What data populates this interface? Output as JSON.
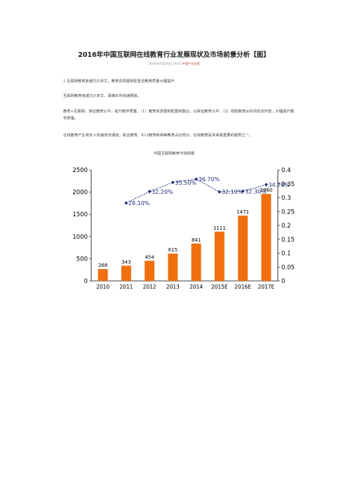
{
  "document": {
    "title": "2016年中国互联网在线教育行业发展现状及市场前景分析【图】",
    "meta": {
      "date": "2016年05月28日 16:02",
      "author": "中国产业信息"
    },
    "paragraphs": [
      "1.互联网教育浪潮方兴未艾，教育资源重新配置且教育质量大幅提升",
      "互联网教育浪潮方兴未艾，政策红利快速释放。",
      "教育+互联网：保证教育公平，提升教学质量。（1）教育资源重新配置和整合，以保证教育公平。（2）帮助教育从封闭走向开放，大幅提升教学质量。",
      "在线教育产业将步入快速增长通道。职业教育、K12教育和高等教育占比较大。在线教育是未来最重要的趋势之一。"
    ],
    "chart_caption": "中国互联网教育市场规模"
  },
  "chart_data": {
    "type": "bar",
    "categories": [
      "2010",
      "2011",
      "2012",
      "2013",
      "2014",
      "2015E",
      "2016E",
      "2017E"
    ],
    "series": [
      {
        "values": [
          268,
          343,
          454,
          615,
          841,
          1111,
          1471,
          1960
        ],
        "axis": "left",
        "kind": "bar",
        "color": "#f07010"
      },
      {
        "values": [
          null,
          0.281,
          0.322,
          0.355,
          0.367,
          0.321,
          0.323,
          0.347
        ],
        "axis": "right",
        "kind": "line",
        "color": "#1f2f7a"
      }
    ],
    "bar_labels": [
      "268",
      "343",
      "454",
      "615",
      "841",
      "1111",
      "1471",
      "1960"
    ],
    "line_labels": [
      "",
      "28.10%",
      "32.20%",
      "35.50%",
      "36.70%",
      "32.10%",
      "32.30%",
      "34.70%"
    ],
    "ylim_left": [
      0,
      2500
    ],
    "yticks_left": [
      "0",
      "500",
      "1000",
      "1500",
      "2000",
      "2500"
    ],
    "ylim_right": [
      0,
      0.4
    ],
    "yticks_right": [
      "0",
      "0.05",
      "0.1",
      "0.15",
      "0.2",
      "0.25",
      "0.3",
      "0.35",
      "0.4"
    ],
    "grid": false,
    "legend": "none"
  }
}
